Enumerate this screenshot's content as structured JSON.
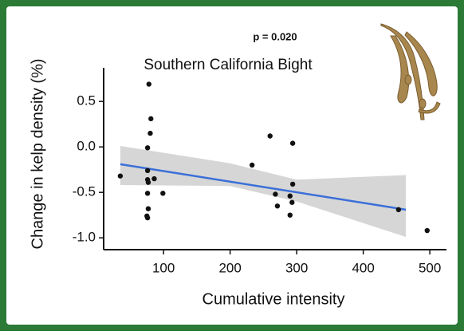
{
  "chart_data": {
    "type": "scatter",
    "title": "Southern California Bight",
    "annotation": "p = 0.020",
    "xlabel": "Cumulative intensity",
    "ylabel": "Change in kelp density (%)",
    "xlim": [
      10,
      525
    ],
    "ylim": [
      -1.13,
      0.87
    ],
    "xticks": [
      100,
      200,
      300,
      400,
      500
    ],
    "yticks": [
      {
        "value": -1.0,
        "label": "-1.0"
      },
      -0.5,
      {
        "value": 0.0,
        "label": "0.0"
      },
      0.5
    ],
    "points": {
      "color": "#111111",
      "x": [
        35,
        78,
        81,
        80,
        76,
        76,
        76,
        77,
        86,
        99,
        76,
        77,
        75,
        76,
        233,
        260,
        294,
        268,
        271,
        294,
        290,
        293,
        290,
        453,
        496
      ],
      "values": [
        -0.32,
        0.69,
        0.31,
        0.15,
        -0.01,
        -0.26,
        -0.36,
        -0.39,
        -0.35,
        -0.51,
        -0.51,
        -0.68,
        -0.76,
        -0.78,
        -0.2,
        0.12,
        0.04,
        -0.52,
        -0.65,
        -0.41,
        -0.54,
        -0.61,
        -0.75,
        -0.69,
        -0.92
      ]
    },
    "fit": {
      "color": "#3b6fd8",
      "x": [
        35,
        464
      ],
      "values": [
        -0.19,
        -0.69
      ]
    },
    "band": {
      "color": "#d6d6d6",
      "x": [
        35,
        200,
        300,
        464
      ],
      "lower": [
        -0.42,
        -0.43,
        -0.6,
        -0.99
      ],
      "upper": [
        0.01,
        -0.18,
        -0.36,
        -0.31
      ]
    }
  }
}
